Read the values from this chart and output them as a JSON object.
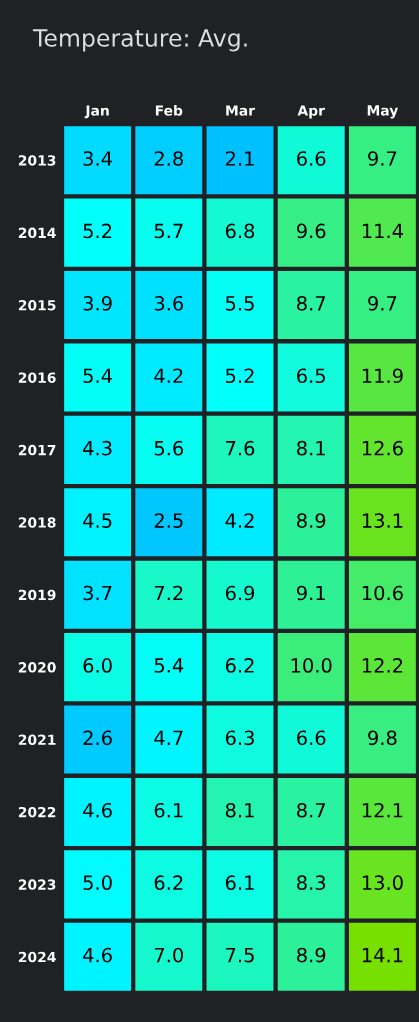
{
  "chart_data": {
    "type": "heatmap",
    "title": "Temperature: Avg.",
    "categories": [
      "Jan",
      "Feb",
      "Mar",
      "Apr",
      "May"
    ],
    "y_categories": [
      "2013",
      "2014",
      "2015",
      "2016",
      "2017",
      "2018",
      "2019",
      "2020",
      "2021",
      "2022",
      "2023",
      "2024"
    ],
    "cells": [
      [
        3.4,
        2.8,
        2.1,
        6.6,
        9.7
      ],
      [
        5.2,
        5.7,
        6.8,
        9.6,
        11.4
      ],
      [
        3.9,
        3.6,
        5.5,
        8.7,
        9.7
      ],
      [
        5.4,
        4.2,
        5.2,
        6.5,
        11.9
      ],
      [
        4.3,
        5.6,
        7.6,
        8.1,
        12.6
      ],
      [
        4.5,
        2.5,
        4.2,
        8.9,
        13.1
      ],
      [
        3.7,
        7.2,
        6.9,
        9.1,
        10.6
      ],
      [
        6.0,
        5.4,
        6.2,
        10.0,
        12.2
      ],
      [
        2.6,
        4.7,
        6.3,
        6.6,
        9.8
      ],
      [
        4.6,
        6.1,
        8.1,
        8.7,
        12.1
      ],
      [
        5.0,
        6.2,
        6.1,
        8.3,
        13.0
      ],
      [
        4.6,
        7.0,
        7.5,
        8.9,
        14.1
      ]
    ],
    "cell_labels": [
      [
        "3.4",
        "2.8",
        "2.1",
        "6.6",
        "9.7"
      ],
      [
        "5.2",
        "5.7",
        "6.8",
        "9.6",
        "11.4"
      ],
      [
        "3.9",
        "3.6",
        "5.5",
        "8.7",
        "9.7"
      ],
      [
        "5.4",
        "4.2",
        "5.2",
        "6.5",
        "11.9"
      ],
      [
        "4.3",
        "5.6",
        "7.6",
        "8.1",
        "12.6"
      ],
      [
        "4.5",
        "2.5",
        "4.2",
        "8.9",
        "13.1"
      ],
      [
        "3.7",
        "7.2",
        "6.9",
        "9.1",
        "10.6"
      ],
      [
        "6.0",
        "5.4",
        "6.2",
        "10.0",
        "12.2"
      ],
      [
        "2.6",
        "4.7",
        "6.3",
        "6.6",
        "9.8"
      ],
      [
        "4.6",
        "6.1",
        "8.1",
        "8.7",
        "12.1"
      ],
      [
        "5.0",
        "6.2",
        "6.1",
        "8.3",
        "13.0"
      ],
      [
        "4.6",
        "7.0",
        "7.5",
        "8.9",
        "14.1"
      ]
    ]
  }
}
